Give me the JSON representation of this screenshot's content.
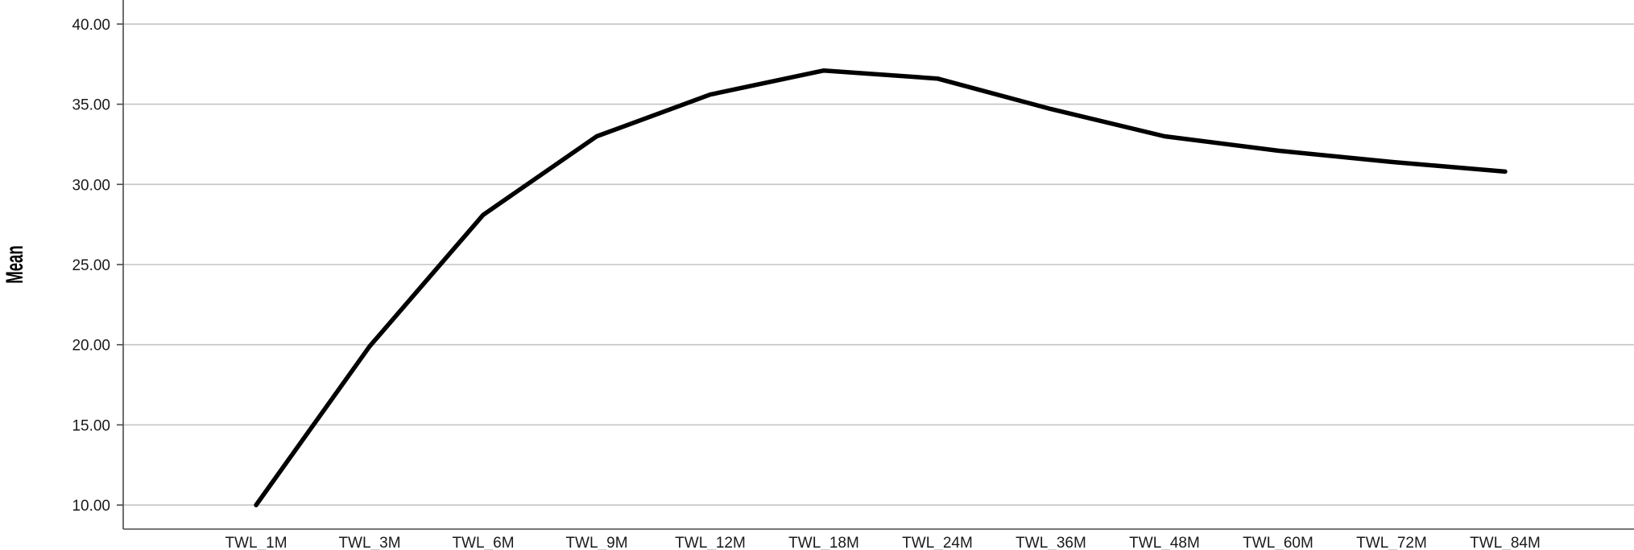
{
  "chart_data": {
    "type": "line",
    "title": "",
    "xlabel": "",
    "ylabel": "Mean",
    "categories": [
      "TWL_1M",
      "TWL_3M",
      "TWL_6M",
      "TWL_9M",
      "TWL_12M",
      "TWL_18M",
      "TWL_24M",
      "TWL_36M",
      "TWL_48M",
      "TWL_60M",
      "TWL_72M",
      "TWL_84M"
    ],
    "series": [
      {
        "values": [
          10.0,
          19.9,
          28.1,
          33.0,
          35.6,
          37.1,
          36.6,
          34.7,
          33.0,
          32.1,
          31.4,
          30.8
        ]
      }
    ],
    "ylim": [
      8.5,
      41.5
    ],
    "yticks": [
      "10.00",
      "15.00",
      "20.00",
      "25.00",
      "30.00",
      "35.00",
      "40.00"
    ],
    "grid": true,
    "line_color": "#000000"
  }
}
